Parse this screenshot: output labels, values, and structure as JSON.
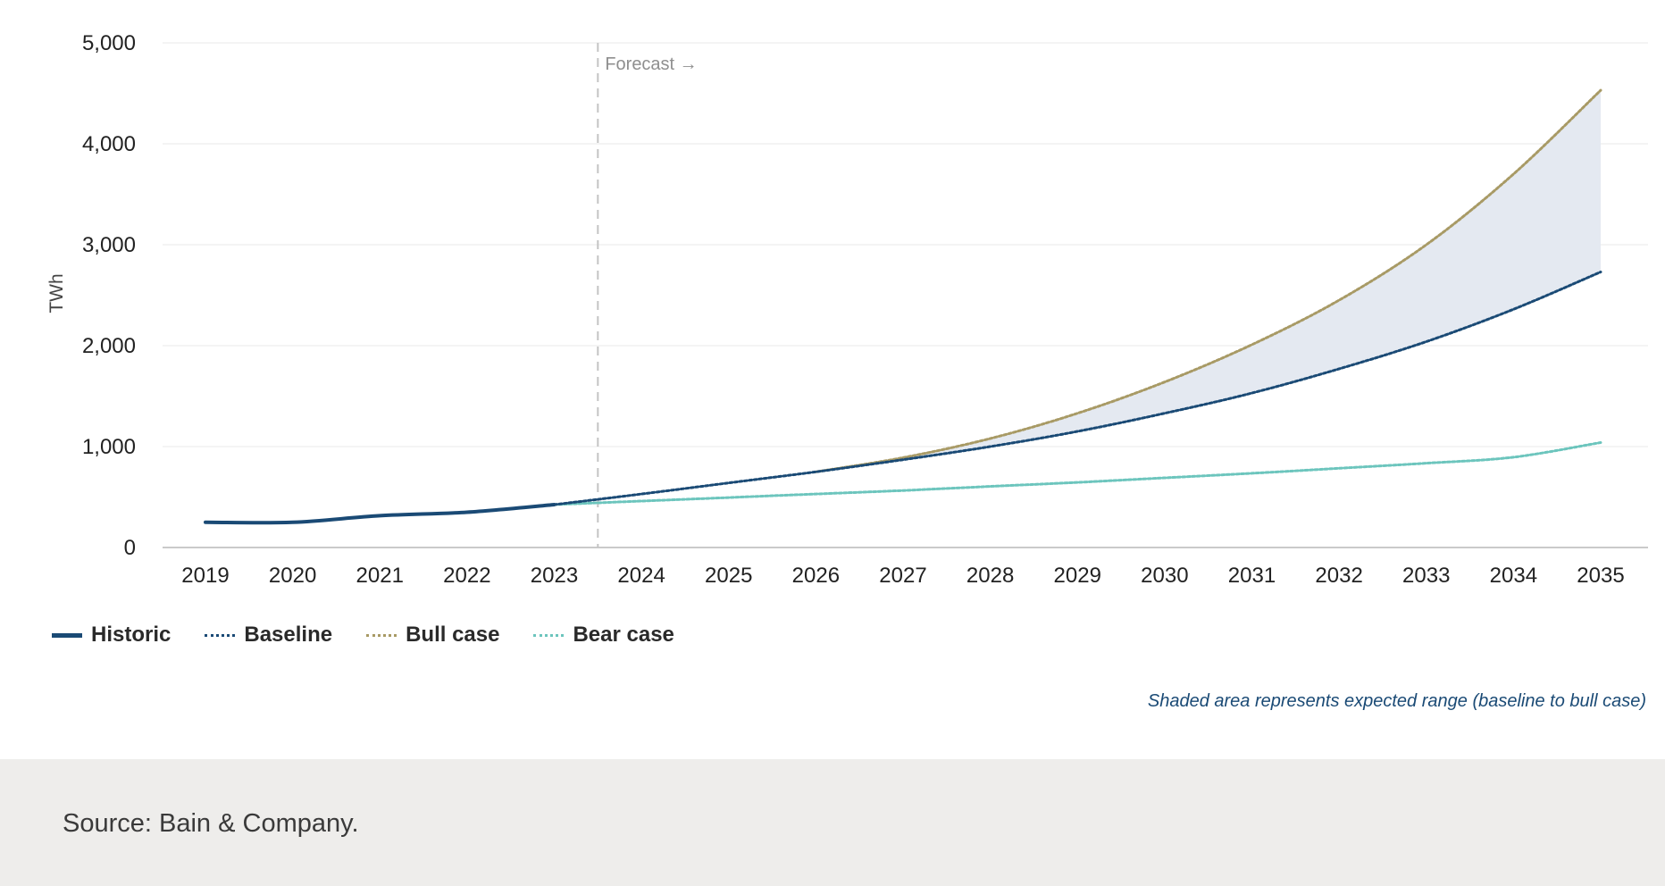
{
  "chart_data": {
    "type": "line",
    "title": "",
    "xlabel": "",
    "ylabel": "TWh",
    "ylim": [
      0,
      5000
    ],
    "yticks": [
      0,
      1000,
      2000,
      3000,
      4000,
      5000
    ],
    "y_tick_labels": [
      "0",
      "1,000",
      "2,000",
      "3,000",
      "4,000",
      "5,000"
    ],
    "x": [
      2019,
      2020,
      2021,
      2022,
      2023,
      2024,
      2025,
      2026,
      2027,
      2028,
      2029,
      2030,
      2031,
      2032,
      2033,
      2034,
      2035
    ],
    "x_tick_labels": [
      "2019",
      "2020",
      "2021",
      "2022",
      "2023",
      "2024",
      "2025",
      "2026",
      "2027",
      "2028",
      "2029",
      "2030",
      "2031",
      "2032",
      "2033",
      "2034",
      "2035"
    ],
    "grid": true,
    "legend_position": "bottom-left",
    "forecast_marker": {
      "x": 2023.5,
      "label": "Forecast →"
    },
    "shaded_range": {
      "lower_series": "Baseline",
      "upper_series": "Bull case",
      "from_x": 2027,
      "to_x": 2035
    },
    "series": [
      {
        "name": "Historic",
        "style": "solid",
        "color": "#1a4a75",
        "x": [
          2019,
          2020,
          2021,
          2022,
          2023
        ],
        "values": [
          250,
          250,
          315,
          350,
          425
        ]
      },
      {
        "name": "Baseline",
        "style": "dotted",
        "color": "#1a4a75",
        "x": [
          2023,
          2024,
          2025,
          2026,
          2027,
          2028,
          2029,
          2030,
          2031,
          2032,
          2033,
          2034,
          2035
        ],
        "values": [
          425,
          530,
          640,
          750,
          870,
          1000,
          1150,
          1330,
          1530,
          1770,
          2040,
          2360,
          2730
        ]
      },
      {
        "name": "Bull case",
        "style": "dotted",
        "color": "#a89a65",
        "x": [
          2026,
          2027,
          2028,
          2029,
          2030,
          2031,
          2032,
          2033,
          2034,
          2035
        ],
        "values": [
          750,
          890,
          1080,
          1330,
          1640,
          2010,
          2450,
          3000,
          3700,
          4530
        ]
      },
      {
        "name": "Bear case",
        "style": "dotted",
        "color": "#6cc5bd",
        "x": [
          2023,
          2024,
          2025,
          2026,
          2027,
          2028,
          2029,
          2030,
          2031,
          2032,
          2033,
          2034,
          2035
        ],
        "values": [
          425,
          460,
          495,
          530,
          565,
          605,
          645,
          690,
          735,
          785,
          835,
          895,
          1040
        ]
      }
    ],
    "shaded_color": "#e4e9f1",
    "note": "Shaded area represents expected range (baseline to bull case)"
  },
  "footer": {
    "source": "Source: Bain & Company."
  }
}
